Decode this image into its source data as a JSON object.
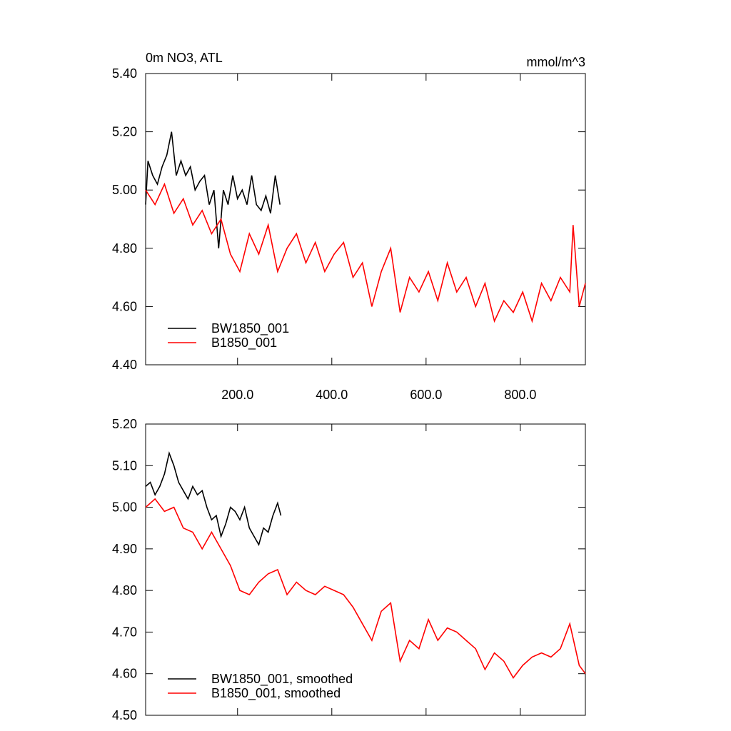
{
  "chart_data": [
    {
      "type": "line",
      "title": "0m NO3, ATL",
      "units": "mmol/m^3",
      "xlim": [
        5,
        938
      ],
      "ylim": [
        4.4,
        5.4
      ],
      "xticks": [
        {
          "value": 200,
          "label": "200.0"
        },
        {
          "value": 400,
          "label": "400.0"
        },
        {
          "value": 600,
          "label": "600.0"
        },
        {
          "value": 800,
          "label": "800.0"
        }
      ],
      "yticks": [
        {
          "value": 4.4,
          "label": "4.40"
        },
        {
          "value": 4.6,
          "label": "4.60"
        },
        {
          "value": 4.8,
          "label": "4.80"
        },
        {
          "value": 5.0,
          "label": "5.00"
        },
        {
          "value": 5.2,
          "label": "5.20"
        },
        {
          "value": 5.4,
          "label": "5.40"
        }
      ],
      "legend": "lower-left",
      "series": [
        {
          "name": "BW1850_001",
          "color": "#000000",
          "x": [
            5,
            10,
            20,
            30,
            40,
            50,
            60,
            70,
            80,
            90,
            100,
            110,
            120,
            130,
            140,
            150,
            160,
            170,
            180,
            190,
            200,
            210,
            220,
            230,
            240,
            250,
            260,
            270,
            280,
            290
          ],
          "values": [
            4.95,
            5.1,
            5.05,
            5.02,
            5.08,
            5.12,
            5.2,
            5.05,
            5.1,
            5.05,
            5.08,
            5.0,
            5.03,
            5.05,
            4.95,
            5.0,
            4.8,
            5.0,
            4.95,
            5.05,
            4.97,
            5.0,
            4.95,
            5.05,
            4.95,
            4.93,
            4.98,
            4.92,
            5.05,
            4.95
          ]
        },
        {
          "name": "B1850_001",
          "color": "#ff0000",
          "x": [
            5,
            25,
            45,
            65,
            85,
            105,
            125,
            145,
            165,
            185,
            205,
            225,
            245,
            265,
            285,
            305,
            325,
            345,
            365,
            385,
            405,
            425,
            445,
            465,
            485,
            505,
            525,
            545,
            565,
            585,
            605,
            625,
            645,
            665,
            685,
            705,
            725,
            745,
            765,
            785,
            805,
            825,
            845,
            865,
            885,
            905,
            912,
            925,
            938
          ],
          "values": [
            5.0,
            4.95,
            5.02,
            4.92,
            4.97,
            4.88,
            4.93,
            4.85,
            4.9,
            4.78,
            4.72,
            4.85,
            4.78,
            4.88,
            4.72,
            4.8,
            4.85,
            4.75,
            4.82,
            4.72,
            4.78,
            4.82,
            4.7,
            4.75,
            4.6,
            4.72,
            4.8,
            4.58,
            4.7,
            4.65,
            4.72,
            4.62,
            4.75,
            4.65,
            4.7,
            4.6,
            4.68,
            4.55,
            4.62,
            4.58,
            4.65,
            4.55,
            4.68,
            4.62,
            4.7,
            4.65,
            4.88,
            4.6,
            4.68
          ]
        }
      ]
    },
    {
      "type": "line",
      "xlim": [
        5,
        938
      ],
      "ylim": [
        4.5,
        5.2
      ],
      "xticks": [
        200,
        400,
        600,
        800
      ],
      "xtick_labels": false,
      "yticks": [
        {
          "value": 4.5,
          "label": "4.50"
        },
        {
          "value": 4.6,
          "label": "4.60"
        },
        {
          "value": 4.7,
          "label": "4.70"
        },
        {
          "value": 4.8,
          "label": "4.80"
        },
        {
          "value": 4.9,
          "label": "4.90"
        },
        {
          "value": 5.0,
          "label": "5.00"
        },
        {
          "value": 5.1,
          "label": "5.10"
        },
        {
          "value": 5.2,
          "label": "5.20"
        }
      ],
      "legend": "lower-left",
      "series": [
        {
          "name": "BW1850_001, smoothed",
          "color": "#000000",
          "x": [
            5,
            15,
            25,
            35,
            45,
            55,
            65,
            75,
            85,
            95,
            105,
            115,
            125,
            135,
            145,
            155,
            165,
            175,
            185,
            195,
            205,
            215,
            225,
            235,
            245,
            255,
            265,
            275,
            285,
            292
          ],
          "values": [
            5.05,
            5.06,
            5.03,
            5.05,
            5.08,
            5.13,
            5.1,
            5.06,
            5.04,
            5.02,
            5.05,
            5.03,
            5.04,
            5.0,
            4.97,
            4.98,
            4.93,
            4.96,
            5.0,
            4.99,
            4.97,
            5.0,
            4.95,
            4.93,
            4.91,
            4.95,
            4.94,
            4.98,
            5.01,
            4.98
          ]
        },
        {
          "name": "B1850_001, smoothed",
          "color": "#ff0000",
          "x": [
            5,
            25,
            45,
            65,
            85,
            105,
            125,
            145,
            165,
            185,
            205,
            225,
            245,
            265,
            285,
            305,
            325,
            345,
            365,
            385,
            405,
            425,
            445,
            465,
            485,
            505,
            525,
            545,
            565,
            585,
            605,
            625,
            645,
            665,
            685,
            705,
            725,
            745,
            765,
            785,
            805,
            825,
            845,
            865,
            885,
            905,
            925,
            938
          ],
          "values": [
            5.0,
            5.02,
            4.99,
            5.0,
            4.95,
            4.94,
            4.9,
            4.94,
            4.9,
            4.86,
            4.8,
            4.79,
            4.82,
            4.84,
            4.85,
            4.79,
            4.82,
            4.8,
            4.79,
            4.81,
            4.8,
            4.79,
            4.76,
            4.72,
            4.68,
            4.75,
            4.77,
            4.63,
            4.68,
            4.66,
            4.73,
            4.68,
            4.71,
            4.7,
            4.68,
            4.66,
            4.61,
            4.65,
            4.63,
            4.59,
            4.62,
            4.64,
            4.65,
            4.64,
            4.66,
            4.72,
            4.62,
            4.6
          ]
        }
      ]
    }
  ]
}
